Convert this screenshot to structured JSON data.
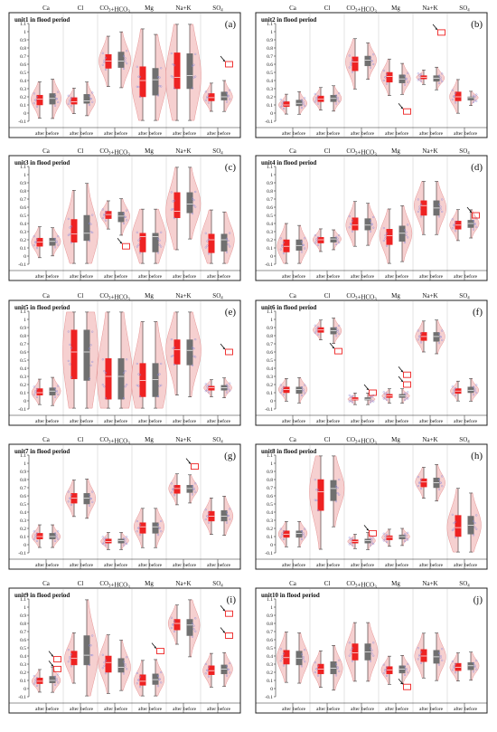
{
  "chart_data": {
    "type": "violin-box",
    "layout": "5 rows x 2 columns of panels",
    "categories": [
      "Ca",
      "Cl",
      "CO3+HCO3",
      "Mg",
      "Na+K",
      "SO4"
    ],
    "groups": [
      "after",
      "before"
    ],
    "ylim": [
      -0.1,
      1.1
    ],
    "yticks": [
      -0.1,
      0,
      0.1,
      0.2,
      0.3,
      0.4,
      0.5,
      0.6,
      0.7,
      0.8,
      0.9,
      1.0,
      1.1
    ],
    "colors": {
      "after": "#ee2222",
      "before": "#707070",
      "violin_fill": "#f5c8c8",
      "violin_edge": "#e08080",
      "marker": "#ee2222",
      "grid": "#d0d0d0"
    },
    "panels": [
      {
        "title": "unit1 in flood period",
        "letter": "(a)",
        "boxes": [
          {
            "after": [
              0.1,
              0.17,
              0.22
            ],
            "before": [
              0.11,
              0.18,
              0.24
            ]
          },
          {
            "after": [
              0.11,
              0.14,
              0.19
            ],
            "before": [
              0.12,
              0.15,
              0.23
            ]
          },
          {
            "after": [
              0.55,
              0.64,
              0.72
            ],
            "before": [
              0.56,
              0.64,
              0.75
            ]
          },
          {
            "after": [
              0.2,
              0.4,
              0.57
            ],
            "before": [
              0.22,
              0.41,
              0.55
            ]
          },
          {
            "after": [
              0.3,
              0.44,
              0.74
            ],
            "before": [
              0.3,
              0.46,
              0.73
            ]
          },
          {
            "after": [
              0.15,
              0.19,
              0.24
            ],
            "before": [
              0.16,
              0.2,
              0.26
            ]
          }
        ],
        "markers": [
          {
            "cat": 5,
            "value": 0.6
          }
        ]
      },
      {
        "title": "unit2 in flood period",
        "letter": "(b)",
        "boxes": [
          {
            "after": [
              0.08,
              0.1,
              0.14
            ],
            "before": [
              0.09,
              0.12,
              0.16
            ]
          },
          {
            "after": [
              0.14,
              0.17,
              0.21
            ],
            "before": [
              0.14,
              0.18,
              0.22
            ]
          },
          {
            "after": [
              0.52,
              0.63,
              0.69
            ],
            "before": [
              0.58,
              0.65,
              0.7
            ]
          },
          {
            "after": [
              0.38,
              0.45,
              0.5
            ],
            "before": [
              0.37,
              0.42,
              0.47
            ]
          },
          {
            "after": [
              0.42,
              0.44,
              0.46
            ],
            "before": [
              0.39,
              0.43,
              0.46
            ]
          },
          {
            "after": [
              0.15,
              0.2,
              0.26
            ],
            "before": [
              0.16,
              0.19,
              0.2
            ]
          }
        ],
        "markers": [
          {
            "cat": 3,
            "value": 0.02
          },
          {
            "cat": 4,
            "value": 0.99
          }
        ]
      },
      {
        "title": "unit3 in flood period",
        "letter": "(c)",
        "boxes": [
          {
            "after": [
              0.12,
              0.17,
              0.22
            ],
            "before": [
              0.13,
              0.18,
              0.22
            ]
          },
          {
            "after": [
              0.17,
              0.27,
              0.45
            ],
            "before": [
              0.19,
              0.28,
              0.5
            ]
          },
          {
            "after": [
              0.46,
              0.51,
              0.55
            ],
            "before": [
              0.42,
              0.49,
              0.54
            ]
          },
          {
            "after": [
              0.05,
              0.24,
              0.28
            ],
            "before": [
              0.05,
              0.24,
              0.28
            ]
          },
          {
            "after": [
              0.47,
              0.55,
              0.78
            ],
            "before": [
              0.53,
              0.64,
              0.78
            ]
          },
          {
            "after": [
              0.04,
              0.2,
              0.27
            ],
            "before": [
              0.06,
              0.2,
              0.27
            ]
          }
        ],
        "markers": [
          {
            "cat": 2,
            "value": 0.12
          }
        ]
      },
      {
        "title": "unit4 in flood period",
        "letter": "(d)",
        "boxes": [
          {
            "after": [
              0.05,
              0.12,
              0.2
            ],
            "before": [
              0.07,
              0.13,
              0.2
            ]
          },
          {
            "after": [
              0.16,
              0.2,
              0.23
            ],
            "before": [
              0.17,
              0.21,
              0.23
            ]
          },
          {
            "after": [
              0.32,
              0.38,
              0.47
            ],
            "before": [
              0.32,
              0.38,
              0.46
            ]
          },
          {
            "after": [
              0.14,
              0.25,
              0.33
            ],
            "before": [
              0.18,
              0.28,
              0.37
            ]
          },
          {
            "after": [
              0.5,
              0.62,
              0.68
            ],
            "before": [
              0.5,
              0.59,
              0.68
            ]
          },
          {
            "after": [
              0.33,
              0.38,
              0.43
            ],
            "before": [
              0.35,
              0.4,
              0.44
            ]
          }
        ],
        "markers": [
          {
            "cat": 5,
            "value": 0.5
          }
        ]
      },
      {
        "title": "unit5 in flood period",
        "letter": "(e)",
        "boxes": [
          {
            "after": [
              0.07,
              0.1,
              0.15
            ],
            "before": [
              0.07,
              0.12,
              0.16
            ]
          },
          {
            "after": [
              0.27,
              0.6,
              0.87
            ],
            "before": [
              0.25,
              0.6,
              0.87
            ]
          },
          {
            "after": [
              0.02,
              0.3,
              0.52
            ],
            "before": [
              0.02,
              0.3,
              0.52
            ]
          },
          {
            "after": [
              0.05,
              0.25,
              0.46
            ],
            "before": [
              0.05,
              0.26,
              0.46
            ]
          },
          {
            "after": [
              0.45,
              0.63,
              0.75
            ],
            "before": [
              0.44,
              0.62,
              0.75
            ]
          },
          {
            "after": [
              0.13,
              0.16,
              0.18
            ],
            "before": [
              0.13,
              0.16,
              0.19
            ]
          }
        ],
        "markers": [
          {
            "cat": 5,
            "value": 0.6
          }
        ]
      },
      {
        "title": "unit6 in flood period",
        "letter": "(f)",
        "boxes": [
          {
            "after": [
              0.1,
              0.14,
              0.17
            ],
            "before": [
              0.09,
              0.14,
              0.17
            ]
          },
          {
            "after": [
              0.84,
              0.87,
              0.9
            ],
            "before": [
              0.82,
              0.86,
              0.9
            ]
          },
          {
            "after": [
              0.01,
              0.02,
              0.04
            ],
            "before": [
              0.01,
              0.02,
              0.04
            ]
          },
          {
            "after": [
              0.04,
              0.06,
              0.08
            ],
            "before": [
              0.04,
              0.06,
              0.08
            ]
          },
          {
            "after": [
              0.74,
              0.79,
              0.84
            ],
            "before": [
              0.73,
              0.79,
              0.84
            ]
          },
          {
            "after": [
              0.09,
              0.12,
              0.15
            ],
            "before": [
              0.1,
              0.13,
              0.17
            ]
          }
        ],
        "markers": [
          {
            "cat": 1,
            "value": 0.61
          },
          {
            "cat": 2,
            "value": 0.1
          },
          {
            "cat": 3,
            "value": 0.32
          },
          {
            "cat": 3,
            "value": 0.2
          }
        ]
      },
      {
        "title": "unit7 in flood period",
        "letter": "(g)",
        "boxes": [
          {
            "after": [
              0.07,
              0.1,
              0.14
            ],
            "before": [
              0.07,
              0.1,
              0.14
            ]
          },
          {
            "after": [
              0.51,
              0.57,
              0.63
            ],
            "before": [
              0.5,
              0.57,
              0.63
            ]
          },
          {
            "after": [
              0.02,
              0.04,
              0.07
            ],
            "before": [
              0.02,
              0.05,
              0.07
            ]
          },
          {
            "after": [
              0.14,
              0.22,
              0.27
            ],
            "before": [
              0.14,
              0.22,
              0.27
            ]
          },
          {
            "after": [
              0.63,
              0.69,
              0.73
            ],
            "before": [
              0.64,
              0.69,
              0.73
            ]
          },
          {
            "after": [
              0.29,
              0.35,
              0.41
            ],
            "before": [
              0.29,
              0.35,
              0.42
            ]
          }
        ],
        "markers": [
          {
            "cat": 4,
            "value": 0.96
          }
        ]
      },
      {
        "title": "unit8 in flood period",
        "letter": "(h)",
        "boxes": [
          {
            "after": [
              0.09,
              0.13,
              0.17
            ],
            "before": [
              0.09,
              0.14,
              0.17
            ]
          },
          {
            "after": [
              0.42,
              0.65,
              0.8
            ],
            "before": [
              0.54,
              0.69,
              0.79
            ]
          },
          {
            "after": [
              0.02,
              0.04,
              0.06
            ],
            "before": [
              0.02,
              0.05,
              0.07
            ]
          },
          {
            "after": [
              0.06,
              0.09,
              0.11
            ],
            "before": [
              0.07,
              0.1,
              0.12
            ]
          },
          {
            "after": [
              0.71,
              0.77,
              0.81
            ],
            "before": [
              0.7,
              0.76,
              0.82
            ]
          },
          {
            "after": [
              0.1,
              0.21,
              0.36
            ],
            "before": [
              0.13,
              0.24,
              0.35
            ]
          }
        ],
        "markers": [
          {
            "cat": 2,
            "value": 0.14
          }
        ]
      },
      {
        "title": "unit9 in flood period",
        "letter": "(i)",
        "boxes": [
          {
            "after": [
              0.06,
              0.09,
              0.13
            ],
            "before": [
              0.07,
              0.1,
              0.15
            ]
          },
          {
            "after": [
              0.29,
              0.37,
              0.46
            ],
            "before": [
              0.29,
              0.41,
              0.65
            ]
          },
          {
            "after": [
              0.2,
              0.32,
              0.4
            ],
            "before": [
              0.2,
              0.26,
              0.37
            ]
          },
          {
            "after": [
              0.04,
              0.09,
              0.17
            ],
            "before": [
              0.05,
              0.11,
              0.18
            ]
          },
          {
            "after": [
              0.72,
              0.8,
              0.85
            ],
            "before": [
              0.65,
              0.78,
              0.85
            ]
          },
          {
            "after": [
              0.17,
              0.22,
              0.28
            ],
            "before": [
              0.18,
              0.24,
              0.29
            ]
          }
        ],
        "markers": [
          {
            "cat": 0,
            "value": 0.24
          },
          {
            "cat": 0,
            "value": 0.36
          },
          {
            "cat": 3,
            "value": 0.46
          },
          {
            "cat": 5,
            "value": 0.92
          },
          {
            "cat": 5,
            "value": 0.65
          }
        ]
      },
      {
        "title": "unit10 in flood period",
        "letter": "(j)",
        "boxes": [
          {
            "after": [
              0.3,
              0.38,
              0.47
            ],
            "before": [
              0.29,
              0.37,
              0.46
            ]
          },
          {
            "after": [
              0.18,
              0.24,
              0.3
            ],
            "before": [
              0.18,
              0.25,
              0.33
            ]
          },
          {
            "after": [
              0.35,
              0.44,
              0.55
            ],
            "before": [
              0.35,
              0.45,
              0.55
            ]
          },
          {
            "after": [
              0.18,
              0.23,
              0.27
            ],
            "before": [
              0.19,
              0.24,
              0.28
            ]
          },
          {
            "after": [
              0.33,
              0.4,
              0.48
            ],
            "before": [
              0.31,
              0.39,
              0.47
            ]
          },
          {
            "after": [
              0.22,
              0.26,
              0.31
            ],
            "before": [
              0.23,
              0.28,
              0.32
            ]
          }
        ],
        "markers": [
          {
            "cat": 3,
            "value": 0.02
          }
        ]
      }
    ]
  }
}
